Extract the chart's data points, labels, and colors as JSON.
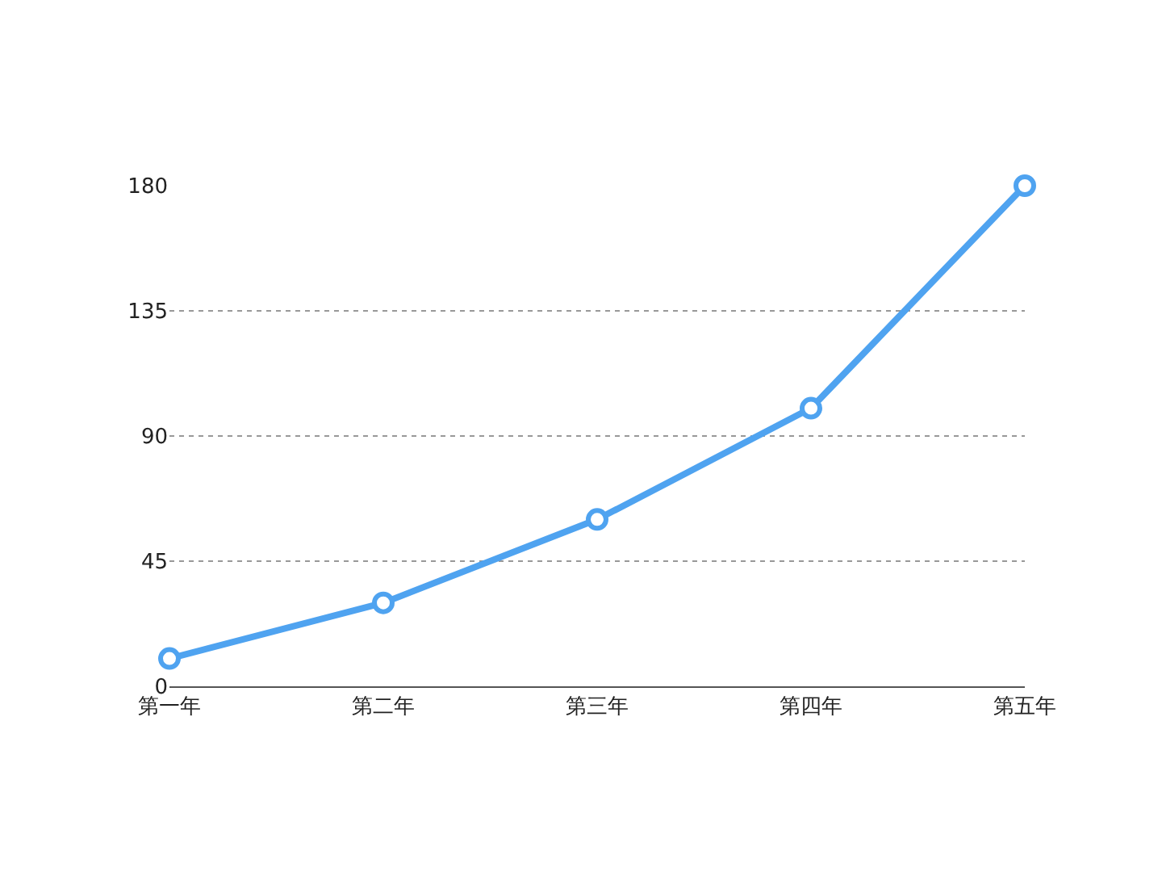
{
  "chart_data": {
    "type": "line",
    "categories": [
      "第一年",
      "第二年",
      "第三年",
      "第四年",
      "第五年"
    ],
    "series": [
      {
        "color": "#4fa3f0",
        "values": [
          10,
          30,
          60,
          100,
          180
        ]
      }
    ],
    "ylim": [
      0,
      180
    ],
    "yticks": [
      0,
      45,
      90,
      135,
      180
    ],
    "grid": "y",
    "legend": false,
    "marker": "circle",
    "line_style": "solid"
  }
}
